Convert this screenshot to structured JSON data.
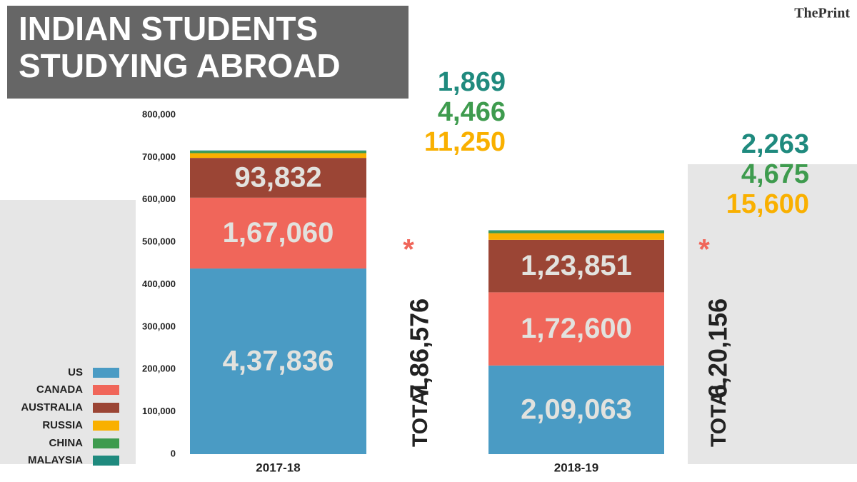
{
  "chart_data": {
    "type": "stacked-bar",
    "title_lines": [
      "INDIAN STUDENTS",
      "STUDYING ABROAD"
    ],
    "source": "ThePrint",
    "categories": [
      "2017-18",
      "2018-19"
    ],
    "series": [
      {
        "name": "US",
        "color": "#4a9bc4",
        "values": [
          437836,
          209063
        ],
        "value_labels": [
          "4,37,836",
          "2,09,063"
        ]
      },
      {
        "name": "CANADA",
        "color": "#f0665a",
        "values": [
          167060,
          172600
        ],
        "value_labels": [
          "1,67,060",
          "1,72,600"
        ]
      },
      {
        "name": "AUSTRALIA",
        "color": "#9b4535",
        "values": [
          93832,
          123851
        ],
        "value_labels": [
          "93,832",
          "1,23,851"
        ]
      },
      {
        "name": "RUSSIA",
        "color": "#f9b000",
        "values": [
          11250,
          15600
        ],
        "value_labels": [
          "11,250",
          "15,600"
        ]
      },
      {
        "name": "CHINA",
        "color": "#3e9b4e",
        "values": [
          4466,
          4675
        ],
        "value_labels": [
          "4,466",
          "4,675"
        ]
      },
      {
        "name": "MALAYSIA",
        "color": "#1f8a7e",
        "values": [
          1869,
          2263
        ],
        "value_labels": [
          "1,869",
          "2,263"
        ]
      }
    ],
    "total_label": "TOTAL",
    "total_mark": "*",
    "totals": [
      {
        "value": 786576,
        "label": "7,86,576"
      },
      {
        "value": 620156,
        "label": "6,20,156"
      }
    ],
    "ylim": [
      0,
      800000
    ],
    "yticks": [
      0,
      {
        "value": 100000,
        "label": "100,000"
      },
      {
        "value": 200000,
        "label": "200,000"
      },
      {
        "value": 300000,
        "label": "300,000"
      },
      {
        "value": 400000,
        "label": "400,000"
      },
      {
        "value": 500000,
        "label": "500,000"
      },
      {
        "value": 600000,
        "label": "600,000"
      },
      {
        "value": 700000,
        "label": "700,000"
      },
      {
        "value": 800000,
        "label": "800,000"
      }
    ],
    "grid": false,
    "legend": "bottom-left"
  }
}
